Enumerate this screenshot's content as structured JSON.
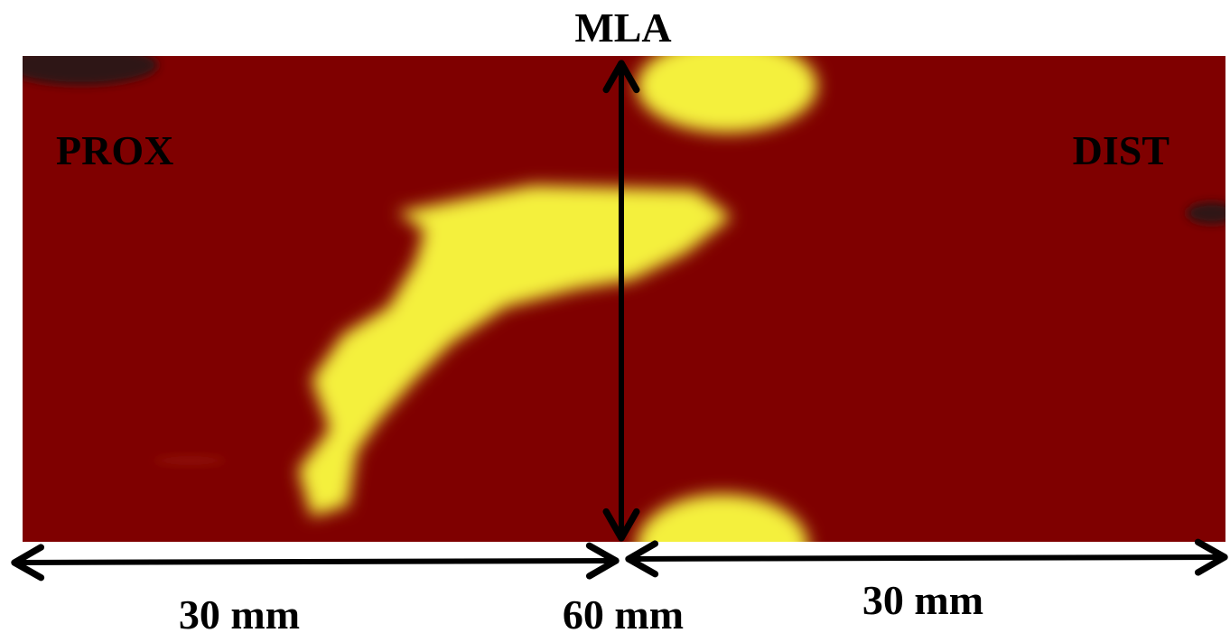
{
  "labels": {
    "top": "MLA",
    "left": "PROX",
    "right": "DIST"
  },
  "scale": {
    "left": "30 mm",
    "center": "60 mm",
    "right": "30 mm"
  }
}
